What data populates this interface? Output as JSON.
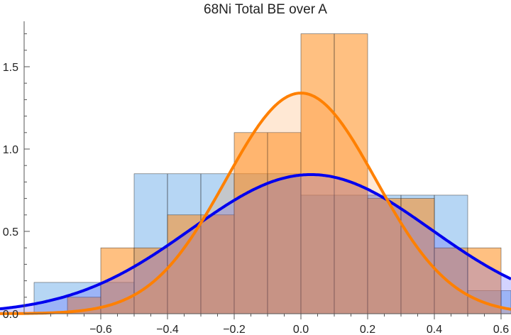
{
  "chart_data": {
    "type": "bar",
    "title": "68Ni Total BE over A",
    "xlabel": "",
    "ylabel": "",
    "xlim": [
      -0.78,
      0.62
    ],
    "ylim": [
      0,
      1.75
    ],
    "x_ticks": [
      -0.6,
      -0.4,
      -0.2,
      0.0,
      0.2,
      0.4,
      0.6
    ],
    "x_tick_labels": [
      "−0.6",
      "−0.4",
      "−0.2",
      "0.0",
      "0.2",
      "0.4",
      "0.6"
    ],
    "y_ticks": [
      0.0,
      0.5,
      1.0,
      1.5
    ],
    "y_tick_labels": [
      "0.0",
      "0.5",
      "1.0",
      "1.5"
    ],
    "grid": false,
    "series": [
      {
        "color": "#5da5e6",
        "type": "histogram",
        "bin_edges": [
          -0.8,
          -0.6,
          -0.5,
          -0.4,
          -0.3,
          -0.2,
          -0.1,
          0.0,
          0.1,
          0.2,
          0.3,
          0.4,
          0.5,
          0.6,
          0.7
        ],
        "values": [
          0.19,
          0.19,
          0.85,
          0.85,
          0.85,
          0.85,
          0.85,
          0.72,
          0.72,
          0.72,
          0.72,
          0.72,
          0.14,
          0.14
        ]
      },
      {
        "color": "#ff8c1a",
        "type": "histogram",
        "bin_edges": [
          -0.8,
          -0.7,
          -0.6,
          -0.5,
          -0.4,
          -0.3,
          -0.2,
          -0.1,
          0.0,
          0.1,
          0.2,
          0.3,
          0.4,
          0.5,
          0.6,
          0.7
        ],
        "values": [
          0.0,
          0.1,
          0.4,
          0.4,
          0.6,
          0.6,
          1.1,
          1.1,
          1.7,
          1.7,
          0.7,
          0.7,
          0.4,
          0.4,
          0.0
        ]
      },
      {
        "color": "#0000ee",
        "type": "gaussian-fit",
        "mu": 0.03,
        "sigma": 0.36,
        "peak": 0.845
      },
      {
        "color": "#ff8000",
        "type": "gaussian-fit",
        "mu": 0.0,
        "sigma": 0.225,
        "peak": 1.34
      }
    ]
  }
}
